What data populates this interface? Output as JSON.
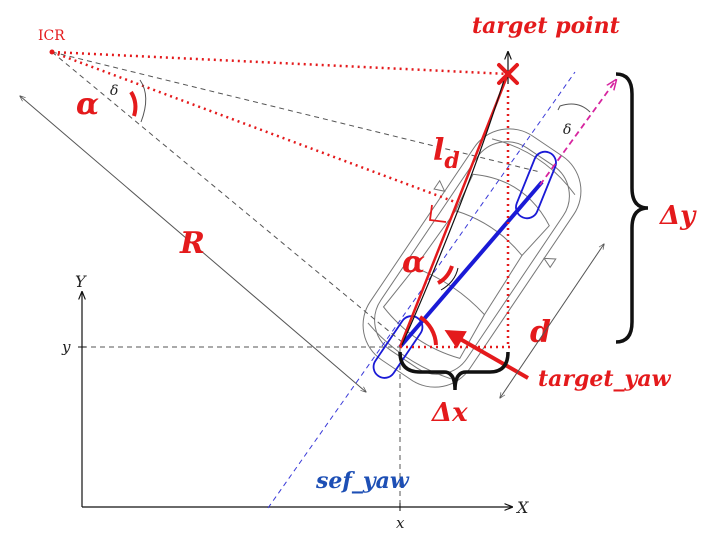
{
  "labels": {
    "icr": "ICR",
    "target_point": "target point",
    "alpha_top": "α",
    "delta_top": "δ",
    "ld_main": "l",
    "ld_sub": "d",
    "R": "R",
    "alpha_mid": "α",
    "d": "d",
    "target_yaw": "target_yaw",
    "delta_x": "Δx",
    "delta_y": "Δy",
    "delta_right": "δ",
    "sef_yaw": "sef_yaw",
    "axis_X": "X",
    "axis_Y": "Y",
    "tick_y": "y",
    "tick_x": "x"
  },
  "colors": {
    "red": "#e41a1c",
    "blue": "#1a1ad6",
    "blue_label": "#1d4fb5",
    "magenta": "#d6249f",
    "gray": "#555555",
    "black": "#111111"
  }
}
